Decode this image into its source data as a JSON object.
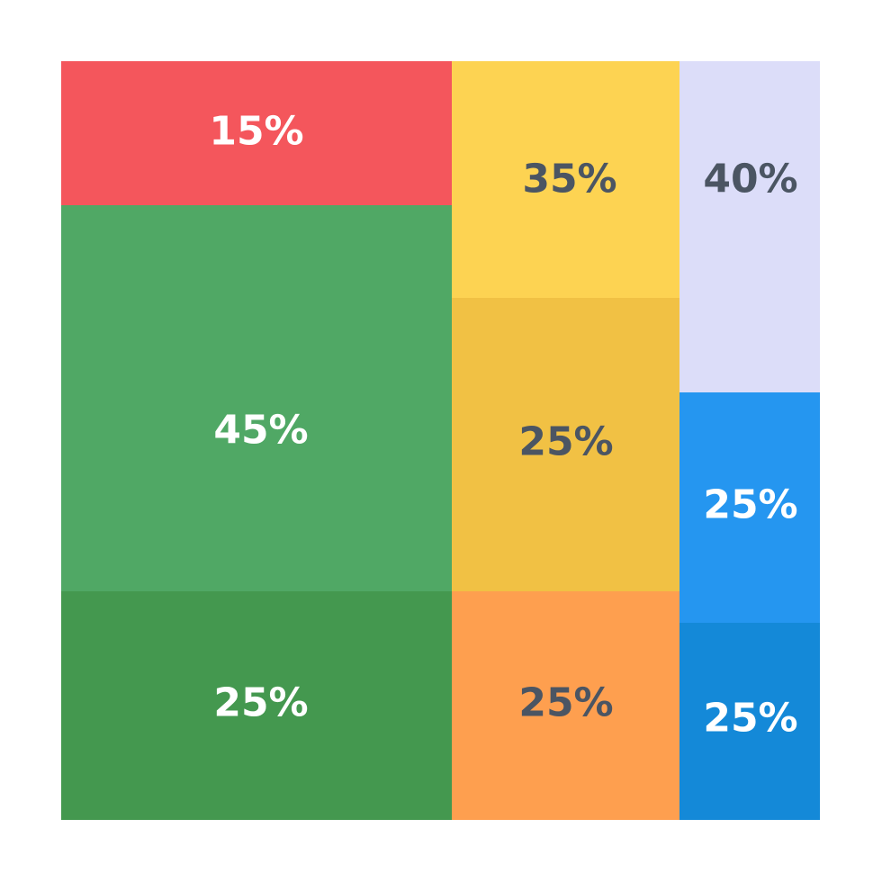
{
  "chart_data": {
    "type": "treemap",
    "columns": [
      {
        "cells": [
          {
            "label": "15%",
            "value": 15,
            "color": "#F4565C",
            "text_color": "#FFFFFF"
          },
          {
            "label": "45%",
            "value": 45,
            "color": "#50A865",
            "text_color": "#FFFFFF"
          },
          {
            "label": "25%",
            "value": 25,
            "color": "#44984F",
            "text_color": "#FFFFFF"
          }
        ]
      },
      {
        "cells": [
          {
            "label": "35%",
            "value": 35,
            "color": "#FDD352",
            "text_color": "#4B5563"
          },
          {
            "label": "25%",
            "value": 25,
            "color": "#F1C144",
            "text_color": "#4B5563"
          },
          {
            "label": "25%",
            "value": 25,
            "color": "#FE9F4F",
            "text_color": "#4B5563"
          }
        ]
      },
      {
        "cells": [
          {
            "label": "40%",
            "value": 40,
            "color": "#DCDDF9",
            "text_color": "#4B5563"
          },
          {
            "label": "25%",
            "value": 25,
            "color": "#2596F0",
            "text_color": "#FFFFFF"
          },
          {
            "label": "25%",
            "value": 25,
            "color": "#1489D8",
            "text_color": "#FFFFFF"
          }
        ]
      }
    ]
  }
}
